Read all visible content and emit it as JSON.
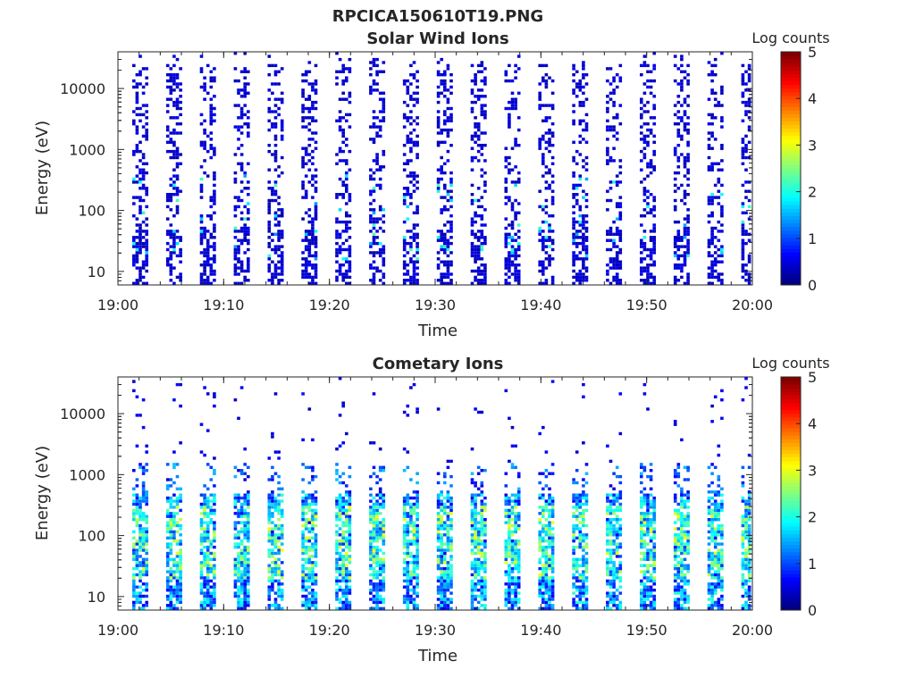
{
  "figure_title": "RPCICA150610T19.PNG",
  "chart_data": [
    {
      "type": "heatmap",
      "title": "Solar Wind Ions",
      "xlabel": "Time",
      "ylabel": "Energy (eV)",
      "y_scale": "log",
      "y_range_ev": [
        6,
        40000
      ],
      "x_range": [
        "19:00",
        "20:00"
      ],
      "x_ticks": [
        "19:00",
        "19:10",
        "19:20",
        "19:30",
        "19:40",
        "19:50",
        "20:00"
      ],
      "y_ticks": [
        10,
        100,
        1000,
        10000
      ],
      "y_tick_labels": [
        "10",
        "100",
        "1000",
        "10000"
      ],
      "colorbar": {
        "label": "Log counts",
        "range": [
          0,
          5
        ],
        "ticks": [
          "0",
          "1",
          "2",
          "3",
          "4",
          "5"
        ]
      },
      "sweep_count": 19,
      "sweep_period_min": 3.2,
      "pattern": "sparse low counts (log ~0-1) scattered 10 eV - 20 keV in periodic energy sweeps; occasional cyan/green (log ~1.5-2.5) near 20-300 eV"
    },
    {
      "type": "heatmap",
      "title": "Cometary Ions",
      "xlabel": "Time",
      "ylabel": "Energy (eV)",
      "y_scale": "log",
      "y_range_ev": [
        6,
        40000
      ],
      "x_range": [
        "19:00",
        "20:00"
      ],
      "x_ticks": [
        "19:00",
        "19:10",
        "19:20",
        "19:30",
        "19:40",
        "19:50",
        "20:00"
      ],
      "y_ticks": [
        10,
        100,
        1000,
        10000
      ],
      "y_tick_labels": [
        "10",
        "100",
        "1000",
        "10000"
      ],
      "colorbar": {
        "label": "Log counts",
        "range": [
          0,
          5
        ],
        "ticks": [
          "0",
          "1",
          "2",
          "3",
          "4",
          "5"
        ]
      },
      "sweep_count": 19,
      "sweep_period_min": 3.2,
      "pattern": "dense counts 10-500 eV, peaks log ~2.5-3 (green/yellow) around 20-300 eV, sparse points up to ~10 keV"
    }
  ]
}
